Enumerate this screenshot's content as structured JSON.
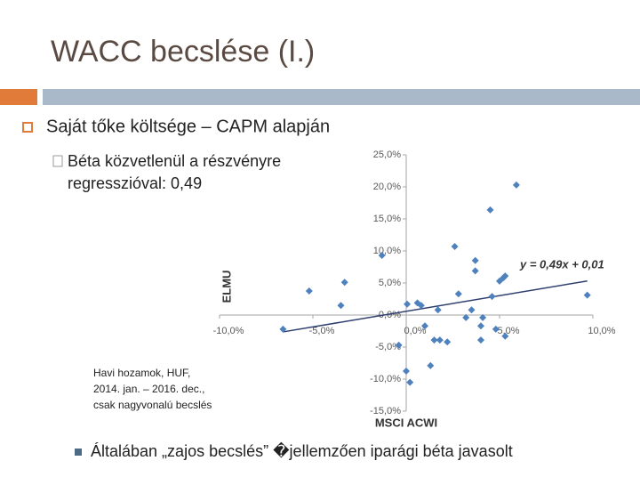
{
  "slide": {
    "title": "WACC becslése (I.)",
    "bullet": "Saját tőke költsége – CAPM alapján",
    "subbullet": [
      "Béta közvetlenül a részvényre",
      "regresszióval: 0,49"
    ],
    "note": [
      "Havi hozamok, HUF,",
      "2014. jan. – 2016. dec.,",
      "csak nagyvonalú becslés"
    ],
    "bottom": "Általában „zajos becslés” �jellemzően iparági béta javasolt"
  },
  "chart_data": {
    "type": "scatter",
    "x_label": "MSCI ACWI",
    "y_label": "ELMU",
    "trendline_label": "y = 0,49x + 0,01",
    "color": "#4f81bd",
    "xlim": [
      -10,
      10
    ],
    "ylim": [
      -15,
      25
    ],
    "xticks": [
      {
        "value": -10,
        "label": "-10,0%"
      },
      {
        "value": -5,
        "label": "-5,0%"
      },
      {
        "value": 0,
        "label": "0,0%"
      },
      {
        "value": 5,
        "label": "5,0%"
      },
      {
        "value": 10,
        "label": "10,0%"
      }
    ],
    "yticks": [
      {
        "value": 25,
        "label": "25,0%"
      },
      {
        "value": 20,
        "label": "20,0%"
      },
      {
        "value": 15,
        "label": "15,0%"
      },
      {
        "value": 10,
        "label": "10,0%"
      },
      {
        "value": 5,
        "label": "5,0%"
      },
      {
        "value": 0,
        "label": "0,0%"
      },
      {
        "value": -5,
        "label": "-5,0%"
      },
      {
        "value": -10,
        "label": "-10,0%"
      },
      {
        "value": -15,
        "label": "-15,0%"
      }
    ],
    "x": [
      -6.6,
      -5.2,
      -3.5,
      -3.3,
      -1.3,
      -0.4,
      0.05,
      0,
      0.2,
      0.6,
      0.8,
      1.0,
      1.3,
      1.5,
      1.7,
      1.8,
      2.2,
      2.6,
      2.8,
      3.2,
      3.5,
      3.7,
      3.7,
      4.0,
      4.0,
      4.1,
      4.5,
      4.6,
      4.8,
      5.0,
      5.2,
      5.3,
      5.3,
      5.9,
      9.7
    ],
    "values": [
      -2.2,
      3.75,
      1.5,
      5.1,
      9.3,
      -4.7,
      1.7,
      -8.75,
      -10.5,
      1.9,
      1.5,
      -1.7,
      -7.9,
      -3.9,
      0.8,
      -3.9,
      -4.2,
      10.7,
      3.3,
      -0.4,
      0.8,
      8.5,
      6.9,
      -3.9,
      -1.7,
      -0.4,
      16.4,
      2.9,
      -2.2,
      5.3,
      5.8,
      6.1,
      -3.3,
      20.3,
      3.1
    ]
  }
}
